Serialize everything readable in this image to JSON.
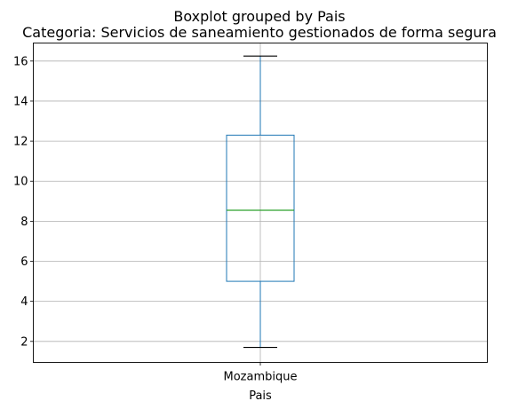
{
  "chart_data": {
    "type": "boxplot",
    "suptitle": "Boxplot grouped by Pais",
    "title": "Categoria: Servicios de saneamiento gestionados de forma segura",
    "xlabel": "Pais",
    "ylabel": "",
    "categories": [
      "Mozambique"
    ],
    "boxes": [
      {
        "category": "Mozambique",
        "whisker_low": 1.7,
        "q1": 5.0,
        "median": 8.55,
        "q3": 12.3,
        "whisker_high": 16.25
      }
    ],
    "ylim": [
      0.95,
      16.9
    ],
    "yticks": [
      2,
      4,
      6,
      8,
      10,
      12,
      14,
      16
    ],
    "grid": true,
    "colors": {
      "box": "#1f77b4",
      "median": "#2ca02c",
      "caps": "#000000",
      "grid": "#b0b0b0"
    }
  }
}
